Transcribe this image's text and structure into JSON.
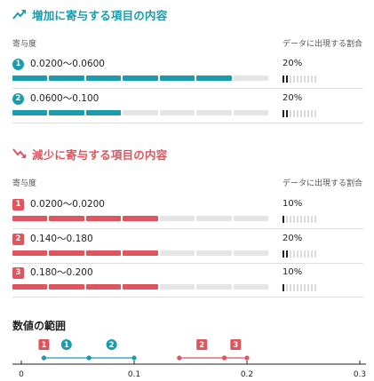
{
  "increase": {
    "title": "増加に寄与する項目の内容",
    "col_left": "寄与度",
    "col_right": "データに出現する割合",
    "items": [
      {
        "badge": "1",
        "range": "0.0200〜0.0600",
        "contribution": 0.8,
        "percent": "20%",
        "share": 0.2
      },
      {
        "badge": "2",
        "range": "0.0600〜0.100",
        "contribution": 0.4,
        "percent": "20%",
        "share": 0.2
      }
    ]
  },
  "decrease": {
    "title": "減少に寄与する項目の内容",
    "col_left": "寄与度",
    "col_right": "データに出現する割合",
    "items": [
      {
        "badge": "1",
        "range": "0.0200〜0.0200",
        "contribution": 0.55,
        "percent": "10%",
        "share": 0.1
      },
      {
        "badge": "2",
        "range": "0.140〜0.180",
        "contribution": 0.55,
        "percent": "20%",
        "share": 0.2
      },
      {
        "badge": "3",
        "range": "0.180〜0.200",
        "contribution": 0.55,
        "percent": "10%",
        "share": 0.1
      }
    ]
  },
  "colors": {
    "increase": "#1a9cad",
    "decrease": "#e0555d",
    "inactive": "#e5e5e5"
  },
  "icons": {
    "increase": "trend-up-icon",
    "decrease": "trend-down-icon"
  },
  "range_section": {
    "title": "数値の範囲",
    "chart_data": {
      "type": "range",
      "xlim": [
        0,
        0.3
      ],
      "ticks": [
        "0",
        "0.1",
        "0.2",
        "0.3"
      ],
      "tick_values": [
        0,
        0.1,
        0.2,
        0.3
      ],
      "increase_ranges": [
        {
          "badge": "1",
          "from": 0.02,
          "to": 0.06
        },
        {
          "badge": "2",
          "from": 0.06,
          "to": 0.1
        }
      ],
      "decrease_ranges": [
        {
          "badge": "1",
          "from": 0.02,
          "to": 0.02
        },
        {
          "badge": "2",
          "from": 0.14,
          "to": 0.18
        },
        {
          "badge": "3",
          "from": 0.18,
          "to": 0.2
        }
      ]
    }
  }
}
